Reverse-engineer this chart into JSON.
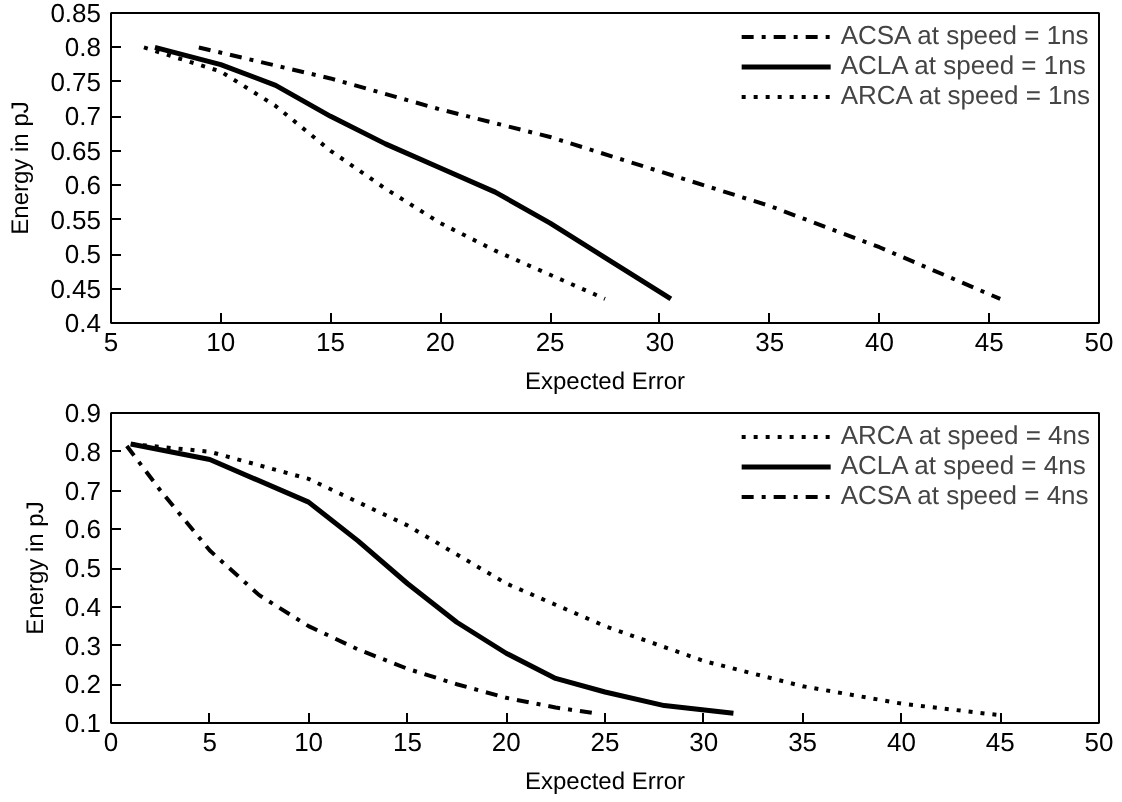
{
  "chart_data": [
    {
      "type": "line",
      "xlabel": "Expected Error",
      "ylabel": "Energy in pJ",
      "xlim": [
        5,
        50
      ],
      "ylim": [
        0.4,
        0.85
      ],
      "xticks": [
        5,
        10,
        15,
        20,
        25,
        30,
        35,
        40,
        45,
        50
      ],
      "yticks": [
        0.4,
        0.45,
        0.5,
        0.55,
        0.6,
        0.65,
        0.7,
        0.75,
        0.8,
        0.85
      ],
      "legend": "top right",
      "series": [
        {
          "name": "ACSA at speed = 1ns",
          "color": "#000000",
          "line_style": "dashdot",
          "x": [
            9,
            15,
            20,
            25,
            30,
            35,
            40,
            45.5
          ],
          "values": [
            0.8,
            0.755,
            0.71,
            0.67,
            0.62,
            0.57,
            0.51,
            0.435
          ]
        },
        {
          "name": "ACLA at speed = 1ns",
          "color": "#000000",
          "line_style": "solid",
          "x": [
            7,
            10,
            12.5,
            15,
            17.5,
            20,
            22.5,
            25,
            27.5,
            30.5
          ],
          "values": [
            0.8,
            0.775,
            0.745,
            0.7,
            0.66,
            0.625,
            0.59,
            0.545,
            0.495,
            0.435
          ]
        },
        {
          "name": "ARCA at speed = 1ns",
          "color": "#000000",
          "line_style": "dotted",
          "x": [
            6.5,
            10,
            12.5,
            15,
            17.5,
            20,
            22.5,
            25,
            27.5
          ],
          "values": [
            0.8,
            0.765,
            0.715,
            0.65,
            0.595,
            0.545,
            0.505,
            0.47,
            0.435
          ]
        }
      ]
    },
    {
      "type": "line",
      "xlabel": "Expected Error",
      "ylabel": "Energy in pJ",
      "xlim": [
        0,
        50
      ],
      "ylim": [
        0.1,
        0.9
      ],
      "xticks": [
        0,
        5,
        10,
        15,
        20,
        25,
        30,
        35,
        40,
        45,
        50
      ],
      "yticks": [
        0.1,
        0.2,
        0.3,
        0.4,
        0.5,
        0.6,
        0.7,
        0.8,
        0.9
      ],
      "legend": "top right",
      "series": [
        {
          "name": "ARCA at speed = 4ns",
          "color": "#000000",
          "line_style": "dotted",
          "x": [
            1,
            5,
            10,
            15,
            20,
            25,
            30,
            35,
            40,
            45
          ],
          "values": [
            0.82,
            0.8,
            0.73,
            0.61,
            0.46,
            0.35,
            0.26,
            0.195,
            0.15,
            0.12
          ]
        },
        {
          "name": "ACLA at speed = 4ns",
          "color": "#000000",
          "line_style": "solid",
          "x": [
            1,
            5,
            10,
            12.5,
            15,
            17.5,
            20,
            22.5,
            25,
            28,
            31.5
          ],
          "values": [
            0.82,
            0.78,
            0.67,
            0.57,
            0.46,
            0.36,
            0.28,
            0.215,
            0.18,
            0.145,
            0.125
          ]
        },
        {
          "name": "ACSA at speed = 4ns",
          "color": "#000000",
          "line_style": "dashdot",
          "x": [
            0.8,
            2.5,
            5,
            7.5,
            10,
            12.5,
            15,
            17.5,
            20,
            22.5,
            24.5
          ],
          "values": [
            0.815,
            0.7,
            0.545,
            0.43,
            0.35,
            0.29,
            0.24,
            0.2,
            0.165,
            0.14,
            0.125
          ]
        }
      ]
    }
  ]
}
